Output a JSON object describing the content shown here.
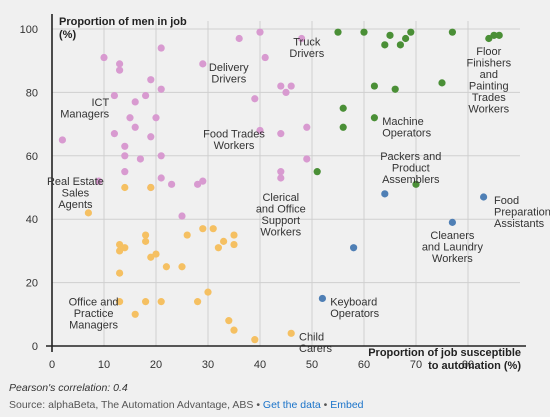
{
  "chart_data": {
    "type": "scatter",
    "ylabel": "Proportion of men in job (%)",
    "xlabel": "Proportion of job susceptible to automation (%)",
    "xlim": [
      0,
      90
    ],
    "ylim": [
      0,
      100
    ],
    "xticks": [
      0,
      10,
      20,
      30,
      40,
      50,
      60,
      70,
      80
    ],
    "yticks": [
      0,
      20,
      40,
      60,
      80,
      100
    ],
    "grid": true,
    "colors": {
      "pink": "#d89ad0",
      "orange": "#f5c062",
      "green": "#4a8f36",
      "blue": "#4f7fb5"
    },
    "series": [
      {
        "color_key": "pink",
        "points": [
          [
            10,
            91
          ],
          [
            13,
            89
          ],
          [
            13,
            87
          ],
          [
            21,
            94
          ],
          [
            36,
            97
          ],
          [
            40,
            99
          ],
          [
            48,
            97
          ],
          [
            29,
            89
          ],
          [
            41,
            91
          ],
          [
            19,
            84
          ],
          [
            21,
            81
          ],
          [
            12,
            79
          ],
          [
            16,
            77
          ],
          [
            18,
            79
          ],
          [
            39,
            78
          ],
          [
            44,
            82
          ],
          [
            45,
            80
          ],
          [
            46,
            82
          ],
          [
            15,
            72
          ],
          [
            20,
            72
          ],
          [
            12,
            67
          ],
          [
            16,
            69
          ],
          [
            2,
            65
          ],
          [
            14,
            63
          ],
          [
            19,
            66
          ],
          [
            14,
            60
          ],
          [
            17,
            59
          ],
          [
            21,
            60
          ],
          [
            40,
            68
          ],
          [
            44,
            67
          ],
          [
            49,
            69
          ],
          [
            9,
            52
          ],
          [
            14,
            55
          ],
          [
            21,
            53
          ],
          [
            23,
            51
          ],
          [
            28,
            51
          ],
          [
            29,
            52
          ],
          [
            44,
            55
          ],
          [
            44,
            53
          ],
          [
            49,
            59
          ],
          [
            19,
            50
          ],
          [
            25,
            41
          ]
        ]
      },
      {
        "color_key": "orange",
        "points": [
          [
            7,
            42
          ],
          [
            14,
            50
          ],
          [
            19,
            50
          ],
          [
            13,
            32
          ],
          [
            13,
            30
          ],
          [
            14,
            31
          ],
          [
            18,
            35
          ],
          [
            18,
            33
          ],
          [
            20,
            29
          ],
          [
            19,
            28
          ],
          [
            22,
            25
          ],
          [
            26,
            35
          ],
          [
            29,
            37
          ],
          [
            31,
            37
          ],
          [
            25,
            25
          ],
          [
            32,
            31
          ],
          [
            33,
            33
          ],
          [
            35,
            35
          ],
          [
            35,
            32
          ],
          [
            13,
            23
          ],
          [
            13,
            14
          ],
          [
            18,
            14
          ],
          [
            21,
            14
          ],
          [
            16,
            10
          ],
          [
            28,
            14
          ],
          [
            30,
            17
          ],
          [
            34,
            8
          ],
          [
            35,
            5
          ],
          [
            39,
            2
          ],
          [
            46,
            4
          ]
        ]
      },
      {
        "color_key": "green",
        "points": [
          [
            55,
            99
          ],
          [
            60,
            99
          ],
          [
            64,
            95
          ],
          [
            65,
            98
          ],
          [
            67,
            95
          ],
          [
            68,
            97
          ],
          [
            69,
            99
          ],
          [
            77,
            99
          ],
          [
            84,
            97
          ],
          [
            85,
            98
          ],
          [
            86,
            98
          ],
          [
            62,
            82
          ],
          [
            66,
            81
          ],
          [
            75,
            83
          ],
          [
            56,
            75
          ],
          [
            56,
            69
          ],
          [
            62,
            72
          ],
          [
            51,
            55
          ],
          [
            70,
            51
          ]
        ]
      },
      {
        "color_key": "blue",
        "points": [
          [
            64,
            48
          ],
          [
            83,
            47
          ],
          [
            77,
            39
          ],
          [
            58,
            31
          ],
          [
            52,
            15
          ]
        ]
      }
    ],
    "annotations": [
      {
        "lines": [
          "Truck",
          "Drivers"
        ],
        "x": 49,
        "y": 96,
        "anchor": "middle"
      },
      {
        "lines": [
          "Delivery",
          "Drivers"
        ],
        "x": 34,
        "y": 88,
        "anchor": "middle"
      },
      {
        "lines": [
          "Floor",
          "Finishers",
          "and",
          "Painting",
          "Trades",
          "Workers"
        ],
        "x": 84,
        "y": 93,
        "anchor": "middle"
      },
      {
        "lines": [
          "ICT",
          "Managers"
        ],
        "x": 11,
        "y": 77,
        "anchor": "end"
      },
      {
        "lines": [
          "Machine",
          "Operators"
        ],
        "x": 63.5,
        "y": 71,
        "anchor": "start"
      },
      {
        "lines": [
          "Food Trades",
          "Workers"
        ],
        "x": 35,
        "y": 67,
        "anchor": "middle"
      },
      {
        "lines": [
          "Packers and",
          "Product",
          "Assemblers"
        ],
        "x": 69,
        "y": 60,
        "anchor": "middle"
      },
      {
        "lines": [
          "Real Estate",
          "Sales",
          "Agents"
        ],
        "x": 4.5,
        "y": 52,
        "anchor": "middle"
      },
      {
        "lines": [
          "Clerical",
          "and Office",
          "Support",
          "Workers"
        ],
        "x": 44,
        "y": 47,
        "anchor": "middle"
      },
      {
        "lines": [
          "Food",
          "Preparation",
          "Assistants"
        ],
        "x": 85,
        "y": 46,
        "anchor": "start"
      },
      {
        "lines": [
          "Cleaners",
          "and Laundry",
          "Workers"
        ],
        "x": 77,
        "y": 35,
        "anchor": "middle"
      },
      {
        "lines": [
          "Keyboard",
          "Operators"
        ],
        "x": 53.5,
        "y": 14,
        "anchor": "start"
      },
      {
        "lines": [
          "Office and",
          "Practice",
          "Managers"
        ],
        "x": 8,
        "y": 14,
        "anchor": "middle"
      },
      {
        "lines": [
          "Child",
          "Carers"
        ],
        "x": 47.5,
        "y": 3,
        "anchor": "start"
      }
    ]
  },
  "footer": {
    "correlation": "Pearson's correlation: 0.4",
    "source_prefix": "Source: alphaBeta, The Automation Advantage, ABS • ",
    "get_data": "Get the data",
    "separator": " • ",
    "embed": "Embed"
  }
}
